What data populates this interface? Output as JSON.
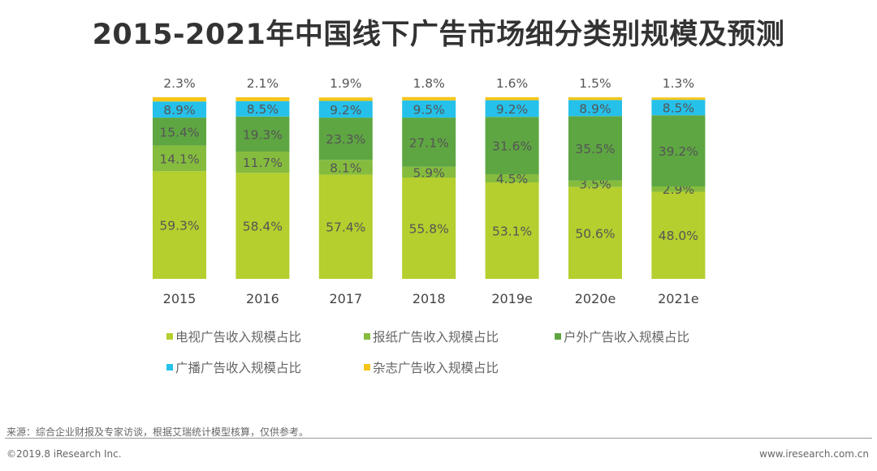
{
  "chart_data": {
    "type": "bar",
    "stacked": true,
    "title": "2015-2021年中国线下广告市场细分类别规模及预测",
    "categories": [
      "2015",
      "2016",
      "2017",
      "2018",
      "2019e",
      "2020e",
      "2021e"
    ],
    "series": [
      {
        "name": "电视广告收入规模占比",
        "color": "#b4cf2e",
        "values": [
          59.3,
          58.4,
          57.4,
          55.8,
          53.1,
          50.6,
          48.0
        ],
        "labels": [
          "59.3%",
          "58.4%",
          "57.4%",
          "55.8%",
          "53.1%",
          "50.6%",
          "48.0%"
        ]
      },
      {
        "name": "报纸广告收入规模占比",
        "color": "#86bc3e",
        "values": [
          14.1,
          11.7,
          8.1,
          5.9,
          4.5,
          3.5,
          2.9
        ],
        "labels": [
          "14.1%",
          "11.7%",
          "8.1%",
          "5.9%",
          "4.5%",
          "3.5%",
          "2.9%"
        ]
      },
      {
        "name": "户外广告收入规模占比",
        "color": "#5ea642",
        "values": [
          15.4,
          19.3,
          23.3,
          27.1,
          31.6,
          35.5,
          39.2
        ],
        "labels": [
          "15.4%",
          "19.3%",
          "23.3%",
          "27.1%",
          "31.6%",
          "35.5%",
          "39.2%"
        ]
      },
      {
        "name": "广播广告收入规模占比",
        "color": "#25c1ea",
        "values": [
          8.9,
          8.5,
          9.2,
          9.5,
          9.2,
          8.9,
          8.5
        ],
        "labels": [
          "8.9%",
          "8.5%",
          "9.2%",
          "9.5%",
          "9.2%",
          "8.9%",
          "8.5%"
        ]
      },
      {
        "name": "杂志广告收入规模占比",
        "color": "#f5c518",
        "values": [
          2.3,
          2.1,
          1.9,
          1.8,
          1.6,
          1.5,
          1.3
        ],
        "labels": [
          "2.3%",
          "2.1%",
          "1.9%",
          "1.8%",
          "1.6%",
          "1.5%",
          "1.3%"
        ]
      }
    ],
    "ylim": [
      0,
      100
    ],
    "grid": false,
    "legend_placement": "bottom"
  },
  "footer": {
    "source": "来源：综合企业财报及专家访谈，根据艾瑞统计模型核算，仅供参考。",
    "copyright": "©2019.8 iResearch Inc.",
    "website": "www.iresearch.com.cn"
  }
}
